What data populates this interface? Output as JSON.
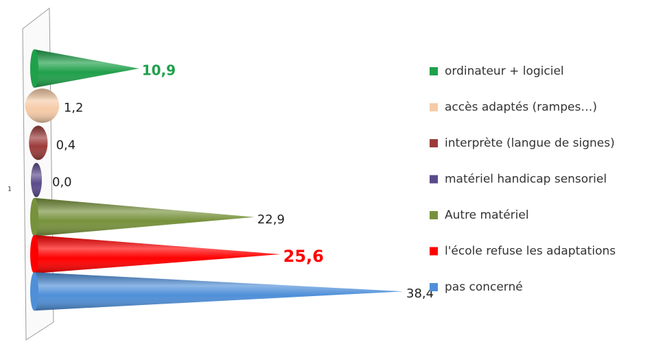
{
  "chart_data": {
    "type": "bar",
    "orientation": "horizontal",
    "shape": "cone",
    "categories": [
      "1"
    ],
    "series": [
      {
        "name": "ordinateur + logiciel",
        "color": "#1fa04a",
        "values": [
          10.9
        ],
        "value_labels": [
          "10,9"
        ]
      },
      {
        "name": "accès adaptés (rampes…)",
        "color": "#f5cba7",
        "values": [
          1.2
        ],
        "value_labels": [
          "1,2"
        ]
      },
      {
        "name": "interprète (langue de signes)",
        "color": "#9b3b3a",
        "values": [
          0.4
        ],
        "value_labels": [
          "0,4"
        ]
      },
      {
        "name": "matériel handicap sensoriel",
        "color": "#5a4a8a",
        "values": [
          0.0
        ],
        "value_labels": [
          "0,0"
        ]
      },
      {
        "name": "Autre matériel",
        "color": "#77923c",
        "values": [
          22.9
        ],
        "value_labels": [
          "22,9"
        ]
      },
      {
        "name": "l'école refuse les adaptations",
        "color": "#ff0000",
        "values": [
          25.6
        ],
        "value_labels": [
          "25,6"
        ]
      },
      {
        "name": "pas concerné",
        "color": "#4f8fd8",
        "values": [
          38.4
        ],
        "value_labels": [
          "38,4"
        ]
      }
    ],
    "legend": "right"
  }
}
